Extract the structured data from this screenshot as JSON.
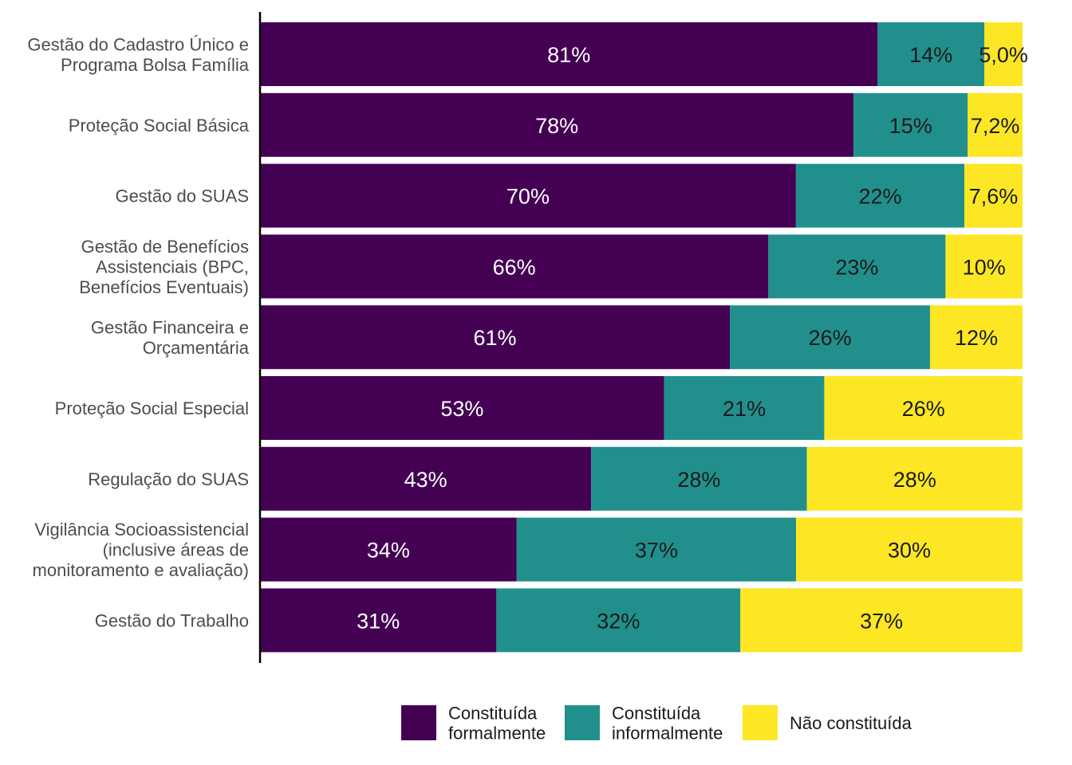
{
  "chart_data": {
    "type": "bar",
    "orientation": "horizontal",
    "stacked": true,
    "normalized": true,
    "categories": [
      [
        "Gestão do Cadastro Único e",
        "Programa Bolsa Família"
      ],
      [
        "Proteção Social Básica"
      ],
      [
        "Gestão do SUAS"
      ],
      [
        "Gestão de Benefícios",
        "Assistenciais (BPC,",
        "Benefícios Eventuais)"
      ],
      [
        "Gestão Financeira e",
        "Orçamentária"
      ],
      [
        "Proteção Social Especial"
      ],
      [
        "Regulação do SUAS"
      ],
      [
        "Vigilância Socioassistencial",
        "(inclusive áreas de",
        "monitoramento e avaliação)"
      ],
      [
        "Gestão do Trabalho"
      ]
    ],
    "series": [
      {
        "name": "Constituída formalmente",
        "legend_lines": [
          "Constituída",
          "formalmente"
        ],
        "color": "#440154",
        "text_color": "#ffffff",
        "values": [
          81,
          78,
          70,
          66,
          61,
          53,
          43,
          34,
          31
        ],
        "labels": [
          "81%",
          "78%",
          "70%",
          "66%",
          "61%",
          "53%",
          "43%",
          "34%",
          "31%"
        ]
      },
      {
        "name": "Constituída informalmente",
        "legend_lines": [
          "Constituída",
          "informalmente"
        ],
        "color": "#21908C",
        "text_color": "#1a1a1a",
        "values": [
          14,
          15,
          22,
          23,
          26,
          21,
          28,
          37,
          32
        ],
        "labels": [
          "14%",
          "15%",
          "22%",
          "23%",
          "26%",
          "21%",
          "28%",
          "37%",
          "32%"
        ]
      },
      {
        "name": "Não constituída",
        "legend_lines": [
          "Não constituída"
        ],
        "color": "#FDE725",
        "text_color": "#1a1a1a",
        "values": [
          5.0,
          7.2,
          7.6,
          10,
          12,
          26,
          28,
          30,
          37
        ],
        "labels": [
          "5,0%",
          "7,2%",
          "7,6%",
          "10%",
          "12%",
          "26%",
          "28%",
          "30%",
          "37%"
        ]
      }
    ],
    "xlim": [
      0,
      100
    ],
    "grid": false,
    "legend_position": "bottom"
  }
}
